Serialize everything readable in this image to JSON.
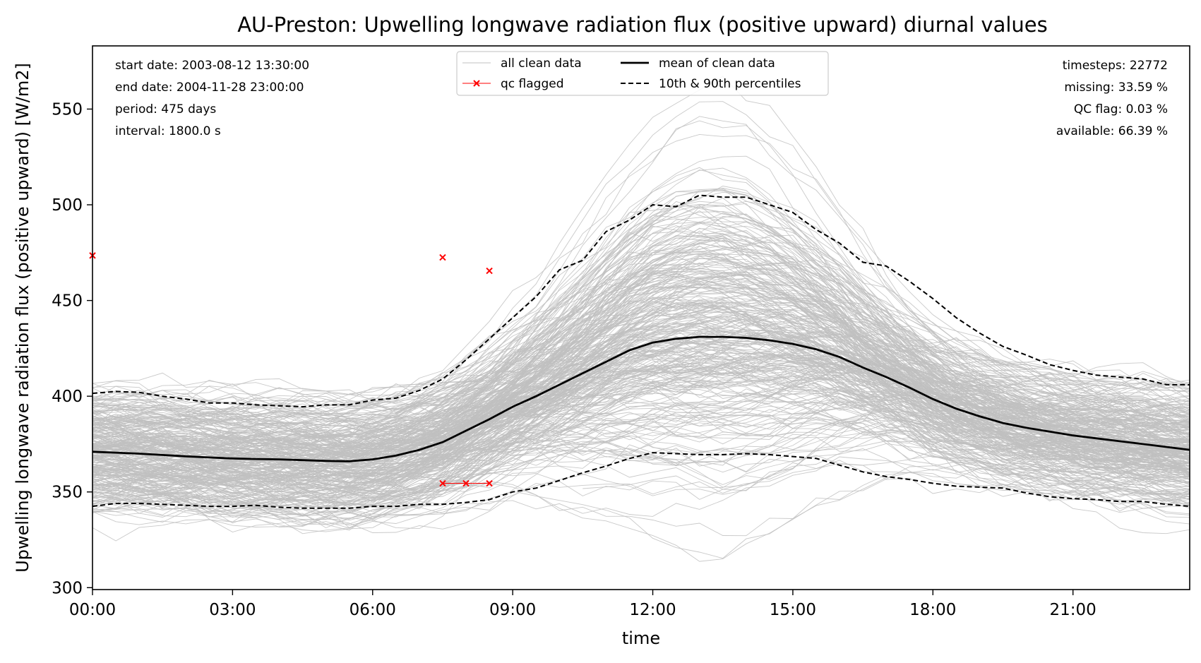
{
  "chart_data": {
    "type": "line",
    "title": "AU-Preston: Upwelling longwave radiation flux (positive upward) diurnal values",
    "xlabel": "time",
    "ylabel": "Upwelling longwave radiation flux (positive upward) [W/m2]",
    "xlim": [
      0,
      23.5
    ],
    "ylim": [
      299,
      583
    ],
    "x_ticks": [
      0,
      3,
      6,
      9,
      12,
      15,
      18,
      21
    ],
    "x_tick_labels": [
      "00:00",
      "03:00",
      "06:00",
      "09:00",
      "12:00",
      "15:00",
      "18:00",
      "21:00"
    ],
    "y_ticks": [
      300,
      350,
      400,
      450,
      500,
      550
    ],
    "y_tick_labels": [
      "300",
      "350",
      "400",
      "450",
      "500",
      "550"
    ],
    "grid": false,
    "legend_position": "top-center",
    "x": [
      0,
      0.5,
      1,
      1.5,
      2,
      2.5,
      3,
      3.5,
      4,
      4.5,
      5,
      5.5,
      6,
      6.5,
      7,
      7.5,
      8,
      8.5,
      9,
      9.5,
      10,
      10.5,
      11,
      11.5,
      12,
      12.5,
      13,
      13.5,
      14,
      14.5,
      15,
      15.5,
      16,
      16.5,
      17,
      17.5,
      18,
      18.5,
      19,
      19.5,
      20,
      20.5,
      21,
      21.5,
      22,
      22.5,
      23,
      23.5
    ],
    "series": [
      {
        "name": "mean of clean data",
        "color": "#000000",
        "style": "solid",
        "values": [
          371,
          370.5,
          370,
          369.3,
          368.6,
          368,
          367.5,
          367.2,
          367,
          366.6,
          366.2,
          366,
          367,
          369,
          372,
          376,
          382,
          388,
          394.5,
          400,
          406,
          412,
          418,
          424,
          428,
          430,
          431,
          431,
          430.5,
          429.2,
          427.3,
          424.5,
          420.5,
          415,
          410,
          404.5,
          398.5,
          393.5,
          389.5,
          386,
          383.5,
          381.5,
          379.5,
          378,
          376.5,
          375,
          373.5,
          372
        ]
      },
      {
        "name": "10th & 90th percentiles",
        "color": "#000000",
        "style": "dashed",
        "values": [
          401.5,
          402.5,
          402,
          400,
          398.5,
          396.5,
          396.5,
          395.5,
          395,
          394.5,
          395.5,
          395.5,
          398,
          399,
          403,
          409,
          419,
          430,
          441,
          452,
          466,
          471,
          486,
          492,
          500,
          499,
          505,
          504,
          504,
          500,
          496,
          487,
          480,
          470,
          468,
          460,
          451,
          441,
          433,
          426,
          421.5,
          416.5,
          413.5,
          411,
          410,
          409,
          406,
          406
        ]
      },
      {
        "name": "10th percentile",
        "color": "#000000",
        "style": "dashed",
        "values": [
          342.5,
          344,
          344,
          343.5,
          343,
          342.5,
          342.5,
          343,
          342,
          341.5,
          341.5,
          341.5,
          342.5,
          342.5,
          343.5,
          343.5,
          344.5,
          346,
          350,
          352,
          356,
          360,
          363.5,
          367.5,
          370.5,
          370,
          369.5,
          369.5,
          370,
          369.5,
          368.5,
          367.5,
          364,
          360.5,
          358,
          356.5,
          354.5,
          353,
          352.5,
          352,
          349.5,
          347.5,
          346.5,
          346,
          345,
          345,
          343.5,
          342.5
        ]
      },
      {
        "name": "qc flagged",
        "color": "#ff0000",
        "style": "marker-x",
        "points": [
          [
            0,
            473.5
          ],
          [
            7.5,
            472.5
          ],
          [
            8.5,
            465.5
          ],
          [
            7.5,
            354.5
          ],
          [
            8,
            354.5
          ],
          [
            8.5,
            354.5
          ]
        ]
      }
    ],
    "legend": {
      "entries": [
        "all clean data",
        "qc flagged",
        "mean of clean data",
        "10th & 90th percentiles"
      ]
    },
    "info_left": [
      "start date: 2003-08-12 13:30:00",
      "end date: 2004-11-28 23:00:00",
      "period: 475 days",
      "interval: 1800.0 s"
    ],
    "info_right": [
      "timesteps: 22772",
      "missing: 33.59 %",
      "QC flag: 0.03 %",
      "available: 66.39 %"
    ],
    "colors": {
      "clean_data": "#c0c0c0",
      "mean": "#000000",
      "percentiles": "#000000",
      "qc_flag": "#ff0000"
    }
  }
}
